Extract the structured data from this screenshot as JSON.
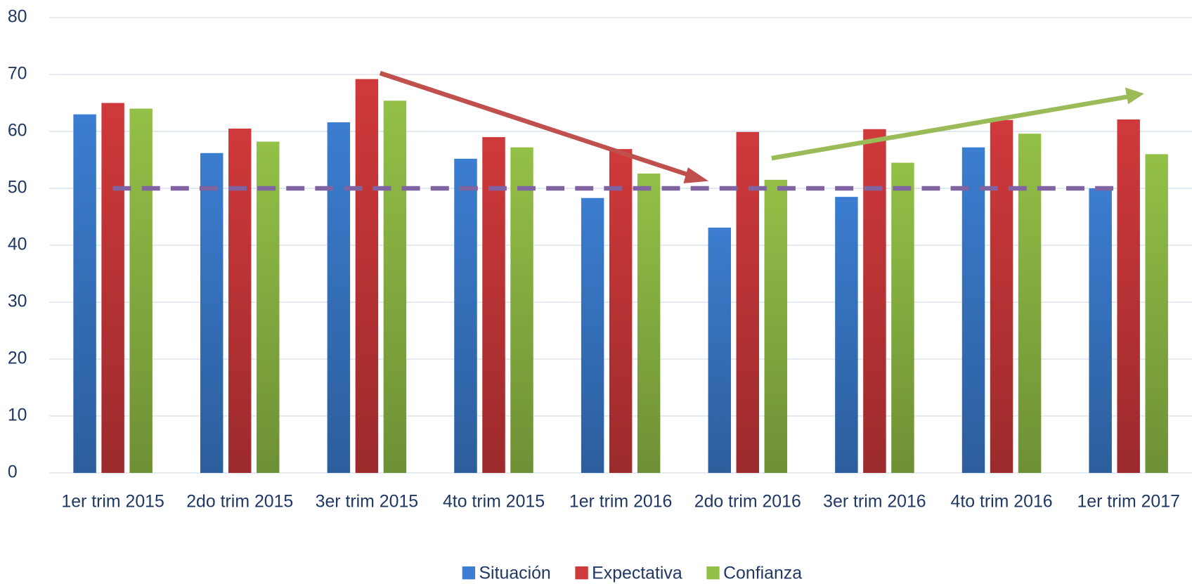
{
  "chart_data": {
    "type": "bar",
    "categories": [
      "1er trim 2015",
      "2do trim 2015",
      "3er trim 2015",
      "4to trim 2015",
      "1er trim 2016",
      "2do trim 2016",
      "3er trim 2016",
      "4to trim 2016",
      "1er trim 2017"
    ],
    "series": [
      {
        "name": "Situación",
        "color": "#3b7dd0",
        "values": [
          63,
          56.2,
          61.6,
          55.2,
          48.3,
          43.1,
          48.5,
          57.2,
          50
        ]
      },
      {
        "name": "Expectativa",
        "color": "#d0393b",
        "values": [
          65,
          60.5,
          69.2,
          59,
          56.9,
          59.9,
          60.4,
          62,
          62.1
        ]
      },
      {
        "name": "Confianza",
        "color": "#93c047",
        "values": [
          64,
          58.2,
          65.4,
          57.2,
          52.6,
          51.5,
          54.5,
          59.6,
          56
        ]
      }
    ],
    "reference_line": {
      "value": 50,
      "color": "#8064a2"
    },
    "ylim": [
      0,
      80
    ],
    "yticks": [
      0,
      10,
      20,
      30,
      40,
      50,
      60,
      70,
      80
    ],
    "grid": true,
    "legend": "bottom"
  }
}
